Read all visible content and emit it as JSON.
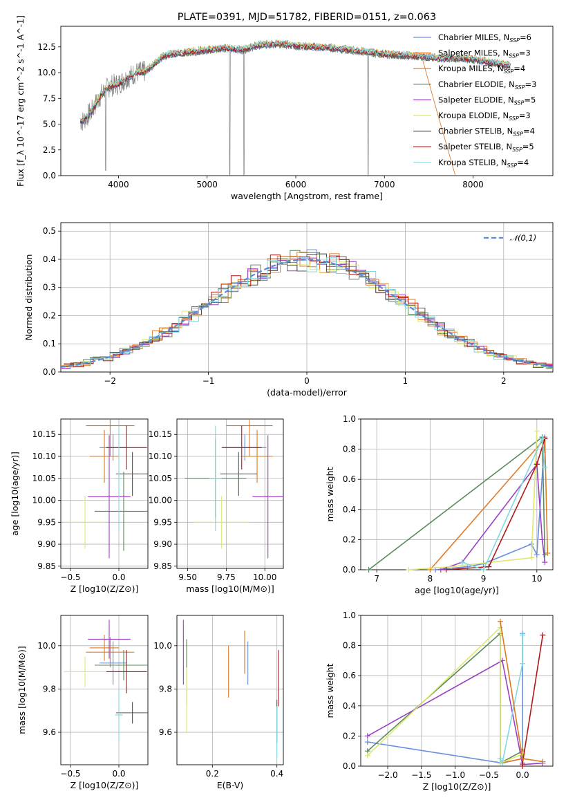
{
  "figure": {
    "title": "PLATE=0391, MJD=51782, FIBERID=0151, z=0.063"
  },
  "colors": {
    "data_grey": "#808080",
    "grid": "#b0b0b0",
    "models": [
      "#6a8fdf",
      "#e07b2a",
      "#d97a20",
      "#5a8a5a",
      "#9a40c0",
      "#dde870",
      "#555555",
      "#b01818",
      "#80d8e0"
    ]
  },
  "chart_data": [
    {
      "id": "spectrum",
      "type": "line",
      "title": "PLATE=0391, MJD=51782, FIBERID=0151, z=0.063",
      "xlabel": "wavelength [Angstrom, rest frame]",
      "ylabel": "Flux [f_λ 10^-17 erg cm^-2 s^-1 A^-1]",
      "xlim": [
        3350,
        8900
      ],
      "ylim": [
        0,
        14.5
      ],
      "xticks": [
        "4000",
        "5000",
        "6000",
        "7000",
        "8000"
      ],
      "yticks": [
        "0.0",
        "2.5",
        "5.0",
        "7.5",
        "10.0",
        "12.5"
      ],
      "grid": false,
      "legend_position": "upper-right",
      "data_x": [
        3600,
        3700,
        3800,
        3900,
        4000,
        4100,
        4200,
        4300,
        4400,
        4500,
        4600,
        4800,
        5000,
        5200,
        5400,
        5600,
        5800,
        6000,
        6200,
        6400,
        6600,
        6800,
        7000,
        7200,
        7400,
        7600,
        7800,
        8000,
        8200,
        8400
      ],
      "data_y": [
        5.3,
        6.3,
        7.8,
        8.7,
        8.9,
        9.5,
        10.0,
        10.1,
        10.8,
        11.6,
        11.8,
        12.0,
        12.2,
        12.4,
        12.2,
        12.7,
        12.8,
        12.6,
        12.5,
        12.4,
        12.2,
        12.0,
        11.8,
        11.7,
        11.6,
        11.4,
        11.4,
        11.3,
        11.0,
        10.7
      ],
      "series": [
        {
          "name": "Chabrier MILES, N_SSP=6",
          "color": "#6a8fdf"
        },
        {
          "name": "Salpeter MILES, N_SSP=3",
          "color": "#e07b2a"
        },
        {
          "name": "Kroupa MILES, N_SSP=4",
          "color": "#d97a20"
        },
        {
          "name": "Chabrier ELODIE, N_SSP=3",
          "color": "#5a8a5a"
        },
        {
          "name": "Salpeter ELODIE, N_SSP=5",
          "color": "#9a40c0"
        },
        {
          "name": "Kroupa ELODIE, N_SSP=3",
          "color": "#dde870"
        },
        {
          "name": "Chabrier STELIB, N_SSP=4",
          "color": "#555555"
        },
        {
          "name": "Salpeter STELIB, N_SSP=5",
          "color": "#b01818"
        },
        {
          "name": "Kroupa STELIB, N_SSP=4",
          "color": "#80d8e0"
        }
      ]
    },
    {
      "id": "residuals",
      "type": "line",
      "xlabel": "(data-model)/error",
      "ylabel": "Normed distribution",
      "xlim": [
        -2.5,
        2.5
      ],
      "ylim": [
        0,
        0.53
      ],
      "xticks": [
        -2,
        -1,
        0,
        1,
        2
      ],
      "yticks": [
        0.0,
        0.1,
        0.2,
        0.3,
        0.4,
        0.5
      ],
      "grid": true,
      "legend_position": "upper-right",
      "legend": "𝒩(0,1)",
      "gaussian": {
        "mu": 0,
        "sigma": 1,
        "color": "#5b8ad4"
      }
    },
    {
      "id": "age-vs-Z",
      "type": "scatter",
      "xlabel": "Z [log10(Z/Z⊙)]",
      "ylabel": "age  [log10(age/yr)]",
      "xlim": [
        -0.6,
        0.3
      ],
      "ylim": [
        9.845,
        10.185
      ],
      "xticks": [
        "-0.5",
        "0.0"
      ],
      "yticks": [
        "9.85",
        "9.90",
        "9.95",
        "10.00",
        "10.05",
        "10.10",
        "10.15"
      ],
      "grid": true,
      "points": [
        {
          "x": -0.06,
          "y": 10.12,
          "xerr": 0.14,
          "yerr": 0.03,
          "c": 0
        },
        {
          "x": -0.09,
          "y": 10.17,
          "xerr": 0.25,
          "yerr": 0.07,
          "c": 1
        },
        {
          "x": -0.15,
          "y": 10.1,
          "xerr": 0.15,
          "yerr": 0.06,
          "c": 2
        },
        {
          "x": 0.05,
          "y": 9.975,
          "xerr": 0.3,
          "yerr": 0.09,
          "c": 3
        },
        {
          "x": -0.1,
          "y": 10.008,
          "xerr": 0.22,
          "yerr": 0.14,
          "c": 4
        },
        {
          "x": -0.35,
          "y": 9.95,
          "xerr": 0.22,
          "yerr": 0.06,
          "c": 5
        },
        {
          "x": 0.14,
          "y": 10.06,
          "xerr": 0.17,
          "yerr": 0.05,
          "c": 6
        },
        {
          "x": 0.08,
          "y": 10.12,
          "xerr": 0.21,
          "yerr": 0.05,
          "c": 7
        },
        {
          "x": 0.0,
          "y": 10.05,
          "xerr": 0.04,
          "yerr": 0.12,
          "c": 8
        }
      ]
    },
    {
      "id": "age-vs-mass",
      "type": "scatter",
      "xlabel": "mass [log10(M/M⊙)]",
      "ylabel": "",
      "xlim": [
        9.43,
        10.12
      ],
      "ylim": [
        9.845,
        10.185
      ],
      "xticks": [
        "9.50",
        "9.75",
        "10.00"
      ],
      "yticks": [
        "9.85",
        "9.90",
        "9.95",
        "10.00",
        "10.05",
        "10.10",
        "10.15"
      ],
      "grid": true,
      "points": [
        {
          "x": 9.87,
          "y": 10.12,
          "xerr": 0.14,
          "yerr": 0.03,
          "c": 0
        },
        {
          "x": 9.9,
          "y": 10.17,
          "xerr": 0.15,
          "yerr": 0.07,
          "c": 1
        },
        {
          "x": 9.95,
          "y": 10.1,
          "xerr": 0.1,
          "yerr": 0.06,
          "c": 2
        },
        {
          "x": 9.68,
          "y": 10.05,
          "xerr": 0.2,
          "yerr": 0.09,
          "c": 3
        },
        {
          "x": 10.02,
          "y": 10.008,
          "xerr": 0.1,
          "yerr": 0.14,
          "c": 4
        },
        {
          "x": 9.72,
          "y": 9.95,
          "xerr": 0.18,
          "yerr": 0.06,
          "c": 5
        },
        {
          "x": 9.83,
          "y": 10.06,
          "xerr": 0.12,
          "yerr": 0.05,
          "c": 6
        },
        {
          "x": 9.85,
          "y": 10.12,
          "xerr": 0.13,
          "yerr": 0.05,
          "c": 7
        },
        {
          "x": 9.68,
          "y": 10.05,
          "xerr": 0.04,
          "yerr": 0.12,
          "c": 8
        }
      ]
    },
    {
      "id": "weight-vs-age",
      "type": "line",
      "xlabel": "age  [log10(age/yr)]",
      "ylabel": "mass weight",
      "xlim": [
        6.7,
        10.3
      ],
      "ylim": [
        0,
        1.0
      ],
      "xticks": [
        "7",
        "8",
        "9",
        "10"
      ],
      "yticks": [
        "0.0",
        "0.2",
        "0.4",
        "0.6",
        "0.8",
        "1.0"
      ],
      "grid": true,
      "series": [
        {
          "c": 0,
          "x": [
            8.1,
            8.7,
            9.0,
            9.9,
            10.0,
            10.15
          ],
          "y": [
            0.0,
            0.02,
            0.04,
            0.17,
            0.1,
            0.88
          ]
        },
        {
          "c": 1,
          "x": [
            8.0,
            10.15,
            10.2
          ],
          "y": [
            0.0,
            0.87,
            0.11
          ]
        },
        {
          "c": 3,
          "x": [
            6.85,
            10.1,
            10.15
          ],
          "y": [
            0.0,
            0.88,
            0.1
          ]
        },
        {
          "c": 4,
          "x": [
            8.2,
            8.6,
            10.0,
            10.1,
            10.15
          ],
          "y": [
            0.0,
            0.05,
            0.7,
            0.2,
            0.05
          ]
        },
        {
          "c": 5,
          "x": [
            7.6,
            8.4,
            9.9,
            10.0
          ],
          "y": [
            0.0,
            0.02,
            0.08,
            0.92
          ]
        },
        {
          "c": 7,
          "x": [
            8.3,
            9.1,
            10.0,
            10.15
          ],
          "y": [
            0.0,
            0.02,
            0.7,
            0.87
          ]
        },
        {
          "c": 8,
          "x": [
            8.6,
            9.0,
            10.1,
            10.15
          ],
          "y": [
            0.05,
            0.0,
            0.87,
            0.68
          ]
        }
      ]
    },
    {
      "id": "mass-vs-Z",
      "type": "scatter",
      "xlabel": "Z [log10(Z/Z⊙)]",
      "ylabel": "mass [log10(M/M⊙)]",
      "xlim": [
        -0.6,
        0.3
      ],
      "ylim": [
        9.45,
        10.14
      ],
      "xticks": [
        "-0.5",
        "0.0"
      ],
      "yticks": [
        "9.6",
        "9.8",
        "10.0"
      ],
      "grid": true,
      "points": [
        {
          "x": -0.06,
          "y": 9.92,
          "xerr": 0.14,
          "yerr": 0.1,
          "c": 0
        },
        {
          "x": -0.09,
          "y": 9.97,
          "xerr": 0.25,
          "yerr": 0.07,
          "c": 1
        },
        {
          "x": -0.15,
          "y": 9.99,
          "xerr": 0.15,
          "yerr": 0.06,
          "c": 2
        },
        {
          "x": 0.05,
          "y": 9.91,
          "xerr": 0.3,
          "yerr": 0.07,
          "c": 3
        },
        {
          "x": -0.1,
          "y": 10.03,
          "xerr": 0.22,
          "yerr": 0.09,
          "c": 4
        },
        {
          "x": -0.35,
          "y": 9.88,
          "xerr": 0.22,
          "yerr": 0.07,
          "c": 5
        },
        {
          "x": 0.14,
          "y": 9.69,
          "xerr": 0.17,
          "yerr": 0.05,
          "c": 6
        },
        {
          "x": 0.08,
          "y": 9.88,
          "xerr": 0.21,
          "yerr": 0.1,
          "c": 7
        },
        {
          "x": 0.0,
          "y": 9.68,
          "xerr": 0.04,
          "yerr": 0.12,
          "c": 8
        }
      ]
    },
    {
      "id": "mass-vs-ebv",
      "type": "scatter",
      "xlabel": "E(B-V)",
      "ylabel": "",
      "xlim": [
        0.09,
        0.42
      ],
      "ylim": [
        9.45,
        10.14
      ],
      "xticks": [
        "0.2",
        "0.4"
      ],
      "yticks": [
        "9.6",
        "9.8",
        "10.0"
      ],
      "grid": true,
      "points": [
        {
          "x": 0.31,
          "y": 9.92,
          "yerr": 0.1,
          "c": 0
        },
        {
          "x": 0.25,
          "y": 9.88,
          "yerr": 0.12,
          "c": 1
        },
        {
          "x": 0.3,
          "y": 9.97,
          "yerr": 0.1,
          "c": 2
        },
        {
          "x": 0.12,
          "y": 9.88,
          "yerr": 0.15,
          "c": 3
        },
        {
          "x": 0.11,
          "y": 9.97,
          "yerr": 0.15,
          "c": 4
        },
        {
          "x": 0.12,
          "y": 9.75,
          "yerr": 0.15,
          "c": 5
        },
        {
          "x": 0.4,
          "y": 9.65,
          "yerr": 0.1,
          "c": 6
        },
        {
          "x": 0.405,
          "y": 9.85,
          "yerr": 0.13,
          "c": 7
        },
        {
          "x": 0.4,
          "y": 9.6,
          "yerr": 0.12,
          "c": 8
        }
      ]
    },
    {
      "id": "weight-vs-Z",
      "type": "line",
      "xlabel": "Z [log10(Z/Z⊙)]",
      "ylabel": "mass weight",
      "xlim": [
        -2.4,
        0.45
      ],
      "ylim": [
        0,
        1.0
      ],
      "xticks": [
        "-2.0",
        "-1.5",
        "-1.0",
        "-0.5",
        "0.0"
      ],
      "yticks": [
        "0.0",
        "0.2",
        "0.4",
        "0.6",
        "0.8",
        "1.0"
      ],
      "grid": true,
      "series": [
        {
          "c": 0,
          "x": [
            -2.3,
            -0.3,
            0.0,
            0.0
          ],
          "y": [
            0.16,
            0.02,
            0.05,
            0.88
          ]
        },
        {
          "c": 1,
          "x": [
            -0.33,
            -0.33,
            0.0,
            0.0
          ],
          "y": [
            0.87,
            0.02,
            0.05,
            0.11
          ]
        },
        {
          "c": 3,
          "x": [
            -2.3,
            -0.33,
            -0.33,
            0.0
          ],
          "y": [
            0.1,
            0.88,
            0.02,
            0.1
          ]
        },
        {
          "c": 4,
          "x": [
            -2.3,
            -0.3,
            0.0,
            0.3
          ],
          "y": [
            0.2,
            0.7,
            0.01,
            0.02
          ]
        },
        {
          "c": 5,
          "x": [
            -2.3,
            -0.33,
            -0.33,
            0.0
          ],
          "y": [
            0.07,
            0.92,
            0.02,
            0.08
          ]
        },
        {
          "c": 7,
          "x": [
            0.0,
            0.0,
            0.3
          ],
          "y": [
            0.0,
            0.02,
            0.87
          ]
        },
        {
          "c": 8,
          "x": [
            -0.33,
            -0.3,
            0.0,
            0.0
          ],
          "y": [
            0.05,
            0.02,
            0.68,
            0.87
          ]
        },
        {
          "c": 2,
          "x": [
            -0.33,
            0.0,
            0.3
          ],
          "y": [
            0.96,
            0.05,
            0.03
          ]
        }
      ]
    }
  ]
}
